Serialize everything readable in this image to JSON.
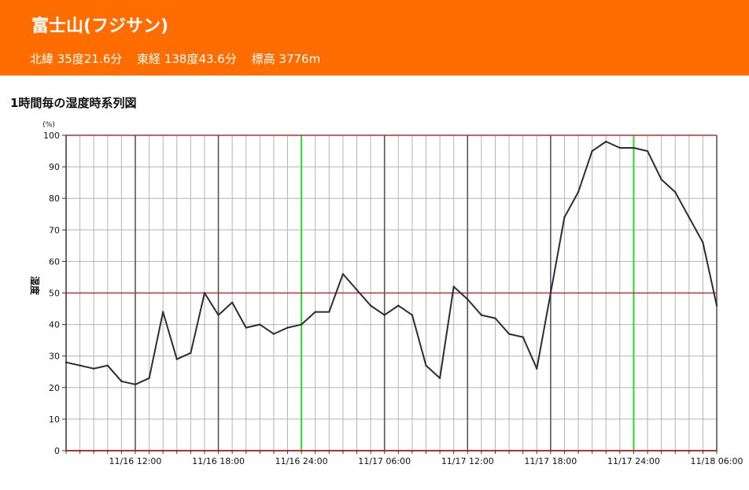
{
  "header": {
    "title": "富士山(フジサン)",
    "latitude": "北緯 35度21.6分",
    "longitude": "東経 138度43.6分",
    "elevation": "標高 3776m",
    "background_color": "#ff6d00"
  },
  "chart_title": "1時間毎の湿度時系列図",
  "chart_data": {
    "type": "line",
    "title": "1時間毎の湿度時系列図",
    "ylabel": "湿度",
    "yunit": "(%)",
    "ylim": [
      0,
      100
    ],
    "yticks": [
      0,
      10,
      20,
      30,
      40,
      50,
      60,
      70,
      80,
      90,
      100
    ],
    "xrange": [
      "11/16 07:00",
      "11/18 06:00"
    ],
    "xtick_labels": [
      "11/16 12:00",
      "11/16 18:00",
      "11/16 24:00",
      "11/17 06:00",
      "11/17 12:00",
      "11/17 18:00",
      "11/17 24:00",
      "11/18 06:00"
    ],
    "grid": true,
    "reference_lines": [
      50,
      100
    ],
    "colors": {
      "line": "#2b2b3a",
      "minor_grid": "#b4b4b4",
      "major_grid": "#555555",
      "midnight_lines": "#22dd22",
      "reference_lines": "#b43232"
    },
    "series": [
      {
        "x": [
          "11/16 07:00",
          "11/16 08:00",
          "11/16 09:00",
          "11/16 10:00",
          "11/16 11:00",
          "11/16 12:00",
          "11/16 13:00",
          "11/16 14:00",
          "11/16 15:00",
          "11/16 16:00",
          "11/16 17:00",
          "11/16 18:00",
          "11/16 19:00",
          "11/16 20:00",
          "11/16 21:00",
          "11/16 22:00",
          "11/16 23:00",
          "11/16 24:00",
          "11/17 01:00",
          "11/17 02:00",
          "11/17 03:00",
          "11/17 04:00",
          "11/17 05:00",
          "11/17 06:00",
          "11/17 07:00",
          "11/17 08:00",
          "11/17 09:00",
          "11/17 10:00",
          "11/17 11:00",
          "11/17 12:00",
          "11/17 13:00",
          "11/17 14:00",
          "11/17 15:00",
          "11/17 16:00",
          "11/17 17:00",
          "11/17 18:00",
          "11/17 19:00",
          "11/17 20:00",
          "11/17 21:00",
          "11/17 22:00",
          "11/17 23:00",
          "11/17 24:00",
          "11/18 01:00",
          "11/18 02:00",
          "11/18 03:00",
          "11/18 04:00",
          "11/18 05:00",
          "11/18 06:00"
        ],
        "values": [
          28,
          27,
          26,
          27,
          22,
          21,
          23,
          44,
          29,
          31,
          50,
          43,
          47,
          39,
          40,
          37,
          39,
          40,
          44,
          44,
          56,
          51,
          46,
          43,
          46,
          43,
          27,
          23,
          52,
          48,
          43,
          42,
          37,
          36,
          26,
          50,
          74,
          82,
          95,
          98,
          96,
          96,
          95,
          86,
          82,
          74,
          66,
          46
        ]
      }
    ]
  }
}
